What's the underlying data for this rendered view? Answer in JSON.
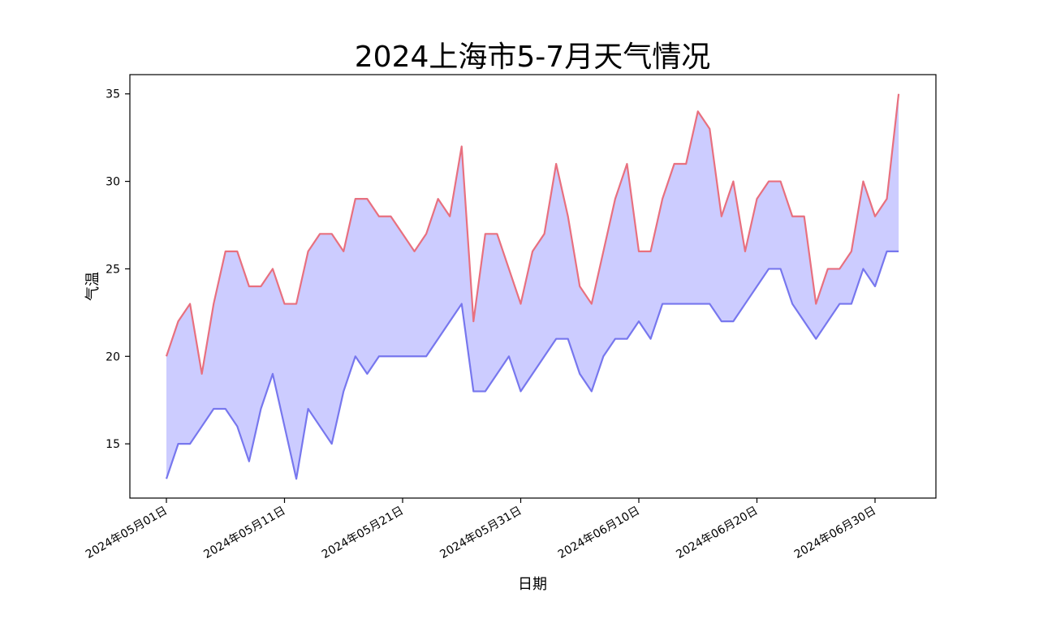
{
  "chart_data": {
    "type": "area",
    "title": "2024上海市5-7月天气情况",
    "xlabel": "日期",
    "ylabel": "气温",
    "x_start": "2024-05-01",
    "x_ticks": [
      "2024年05月01日",
      "2024年05月11日",
      "2024年05月21日",
      "2024年05月31日",
      "2024年06月10日",
      "2024年06月20日",
      "2024年06月30日"
    ],
    "y_ticks": [
      15,
      20,
      25,
      30,
      35
    ],
    "ylim": [
      11.9,
      36.1
    ],
    "grid": false,
    "series": [
      {
        "name": "",
        "color": "#e8707f",
        "values": [
          20,
          22,
          23,
          19,
          23,
          26,
          26,
          24,
          24,
          25,
          23,
          23,
          26,
          27,
          27,
          26,
          29,
          29,
          28,
          28,
          27,
          26,
          27,
          29,
          28,
          32,
          22,
          27,
          27,
          25,
          23,
          26,
          27,
          31,
          28,
          24,
          23,
          26,
          29,
          31,
          26,
          26,
          29,
          31,
          31,
          34,
          33,
          28,
          30,
          26,
          29,
          30,
          30,
          28,
          28,
          23,
          25,
          25,
          26,
          30,
          28,
          29,
          35
        ]
      },
      {
        "name": "",
        "color": "#7777ee",
        "values": [
          13,
          15,
          15,
          16,
          17,
          17,
          16,
          14,
          17,
          19,
          16,
          13,
          17,
          16,
          15,
          18,
          20,
          19,
          20,
          20,
          20,
          20,
          20,
          21,
          22,
          23,
          18,
          18,
          19,
          20,
          18,
          19,
          20,
          21,
          21,
          19,
          18,
          20,
          21,
          21,
          22,
          21,
          23,
          23,
          23,
          23,
          23,
          22,
          22,
          23,
          24,
          25,
          25,
          23,
          22,
          21,
          22,
          23,
          23,
          25,
          24,
          26,
          26
        ]
      }
    ],
    "fill_color": "#ccccff"
  }
}
